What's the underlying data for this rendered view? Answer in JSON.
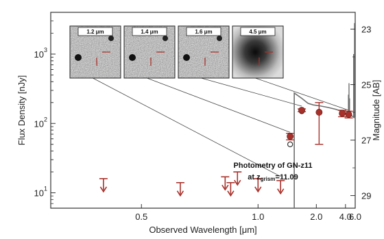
{
  "chart_data": {
    "type": "scatter",
    "title": "",
    "xlabel": "Observed Wavelength [μm]",
    "ylabel": "Flux Density [nJy]",
    "y2label": "Magnitude [AB]",
    "x_scale": "reciprocal",
    "y_scale": "log",
    "xlim": [
      0.36,
      6.0
    ],
    "ylim": [
      6,
      4000
    ],
    "x_ticks": [
      0.5,
      1.0,
      2.0,
      4.0,
      6.0
    ],
    "x_tick_labels": [
      "0.5",
      "1.0",
      "2.0",
      "4.0",
      "6.0"
    ],
    "y_ticks": [
      10,
      100,
      1000
    ],
    "y_tick_labels": [
      "10",
      "10",
      "10"
    ],
    "y_tick_exponents": [
      "1",
      "2",
      "3"
    ],
    "y2_ticks": [
      23,
      25,
      27,
      29
    ],
    "y2_tick_labels": [
      "23",
      "25",
      "27",
      "29"
    ],
    "annotation": {
      "line1": "Photometry of GN-z11",
      "line2_prefix": "at z",
      "line2_sub": "grism",
      "line2_value": "=11.09"
    },
    "colors": {
      "data": "#a8302a",
      "model": "#6e6e6e",
      "axis": "#333333"
    },
    "upper_limits": [
      {
        "x": 0.43,
        "y": 16
      },
      {
        "x": 0.6,
        "y": 14
      },
      {
        "x": 0.78,
        "y": 17
      },
      {
        "x": 0.81,
        "y": 14
      },
      {
        "x": 0.85,
        "y": 20
      },
      {
        "x": 1.0,
        "y": 16
      },
      {
        "x": 1.24,
        "y": 15
      }
    ],
    "detections": [
      {
        "x": 1.38,
        "y": 65,
        "yerr_low": 58,
        "yerr_high": 72
      },
      {
        "x": 1.6,
        "y": 155,
        "yerr_low": 148,
        "yerr_high": 162
      },
      {
        "x": 2.1,
        "y": 145,
        "yerr_low": 50,
        "yerr_high": 200
      },
      {
        "x": 3.6,
        "y": 140,
        "yerr_low": 125,
        "yerr_high": 155
      },
      {
        "x": 4.5,
        "y": 135,
        "yerr_low": 120,
        "yerr_high": 150
      }
    ],
    "model_points": [
      {
        "x": 1.38,
        "y": 50
      },
      {
        "x": 1.6,
        "y": 150
      }
    ],
    "model_sed": [
      {
        "x": 1.45,
        "y": 6
      },
      {
        "x": 1.45,
        "y": 275
      },
      {
        "x": 1.6,
        "y": 230
      },
      {
        "x": 1.75,
        "y": 195
      },
      {
        "x": 1.9,
        "y": 185
      },
      {
        "x": 2.1,
        "y": 180
      },
      {
        "x": 2.5,
        "y": 170
      },
      {
        "x": 3.0,
        "y": 160
      },
      {
        "x": 3.5,
        "y": 150
      },
      {
        "x": 4.0,
        "y": 142
      },
      {
        "x": 4.5,
        "y": 135
      },
      {
        "x": 5.0,
        "y": 130
      },
      {
        "x": 6.0,
        "y": 120
      }
    ],
    "emission_lines": [
      {
        "x": 4.45,
        "y": 260
      },
      {
        "x": 4.55,
        "y": 380
      },
      {
        "x": 4.65,
        "y": 230
      },
      {
        "x": 5.55,
        "y": 1000
      },
      {
        "x": 5.8,
        "y": 2800
      }
    ],
    "insets": [
      {
        "label": "1.2 μm",
        "source_x": 1.24,
        "source_y": 15
      },
      {
        "label": "1.4 μm",
        "source_x": 1.38,
        "source_y": 65
      },
      {
        "label": "1.6 μm",
        "source_x": 1.6,
        "source_y": 155
      },
      {
        "label": "4.5 μm",
        "source_x": 4.5,
        "source_y": 135
      }
    ]
  }
}
